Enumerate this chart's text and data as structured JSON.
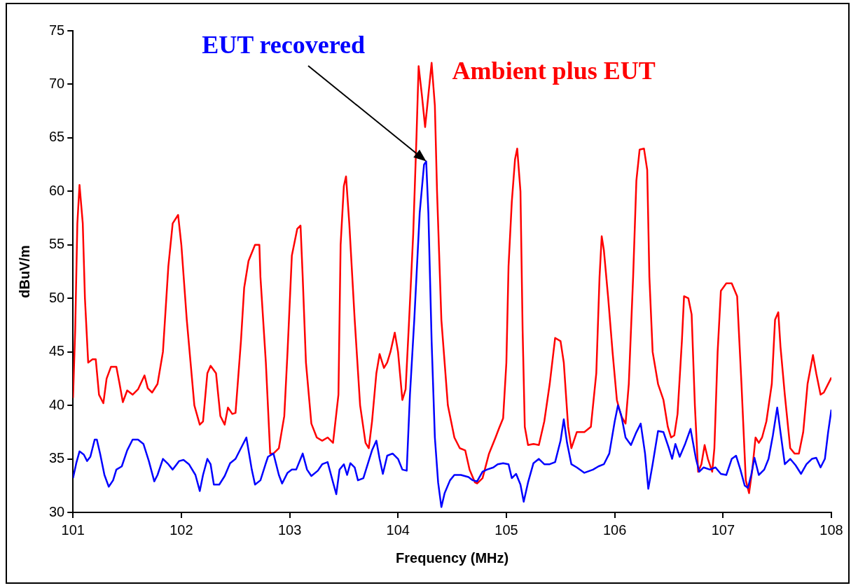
{
  "chart_data": {
    "type": "line",
    "xlabel": "Frequency (MHz)",
    "ylabel": "dBuV/m",
    "xlim": [
      101,
      108
    ],
    "xticks": [
      101,
      102,
      103,
      104,
      105,
      106,
      107,
      108
    ],
    "ylim": [
      30,
      75
    ],
    "yticks": [
      30,
      35,
      40,
      45,
      50,
      55,
      60,
      65,
      70,
      75
    ],
    "grid": false,
    "legend": false,
    "marker": "none",
    "line_style": "solid",
    "series": [
      {
        "name": "Ambient plus EUT",
        "color": "#ff0000",
        "x": [
          101.0,
          101.02,
          101.04,
          101.06,
          101.09,
          101.11,
          101.14,
          101.18,
          101.21,
          101.24,
          101.28,
          101.31,
          101.35,
          101.4,
          101.43,
          101.46,
          101.5,
          101.55,
          101.6,
          101.66,
          101.69,
          101.73,
          101.78,
          101.83,
          101.88,
          101.92,
          101.97,
          102.0,
          102.05,
          102.12,
          102.17,
          102.2,
          102.24,
          102.27,
          102.32,
          102.36,
          102.4,
          102.43,
          102.47,
          102.5,
          102.55,
          102.58,
          102.62,
          102.68,
          102.72,
          102.73,
          102.78,
          102.82,
          102.85,
          102.9,
          102.95,
          102.98,
          103.02,
          103.07,
          103.1,
          103.12,
          103.15,
          103.2,
          103.25,
          103.3,
          103.35,
          103.4,
          103.45,
          103.47,
          103.5,
          103.52,
          103.55,
          103.6,
          103.65,
          103.7,
          103.73,
          103.76,
          103.8,
          103.83,
          103.87,
          103.9,
          103.93,
          103.97,
          104.0,
          104.04,
          104.07,
          104.1,
          104.14,
          104.17,
          104.19,
          104.22,
          104.25,
          104.28,
          104.31,
          104.34,
          104.36,
          104.4,
          104.46,
          104.52,
          104.57,
          104.62,
          104.66,
          104.71,
          104.73,
          104.78,
          104.84,
          104.9,
          104.93,
          104.97,
          105.0,
          105.02,
          105.05,
          105.08,
          105.1,
          105.13,
          105.15,
          105.17,
          105.2,
          105.25,
          105.3,
          105.35,
          105.4,
          105.45,
          105.5,
          105.53,
          105.57,
          105.6,
          105.65,
          105.72,
          105.78,
          105.83,
          105.86,
          105.88,
          105.9,
          105.94,
          105.98,
          106.02,
          106.06,
          106.1,
          106.13,
          106.17,
          106.2,
          106.23,
          106.27,
          106.3,
          106.32,
          106.35,
          106.4,
          106.45,
          106.49,
          106.52,
          106.55,
          106.58,
          106.62,
          106.64,
          106.68,
          106.71,
          106.74,
          106.77,
          106.8,
          106.83,
          106.86,
          106.9,
          106.92,
          106.95,
          106.98,
          107.03,
          107.08,
          107.13,
          107.17,
          107.21,
          107.24,
          107.27,
          107.3,
          107.33,
          107.36,
          107.4,
          107.45,
          107.48,
          107.51,
          107.53,
          107.57,
          107.62,
          107.66,
          107.7,
          107.74,
          107.78,
          107.83,
          107.86,
          107.9,
          107.93,
          107.96,
          108.0
        ],
        "values": [
          40.7,
          47,
          57,
          60.6,
          57,
          50,
          44,
          44.3,
          44.3,
          41,
          40.2,
          42.5,
          43.6,
          43.6,
          42,
          40.3,
          41.4,
          41,
          41.5,
          42.8,
          41.6,
          41.2,
          42,
          45,
          53,
          57,
          57.8,
          55,
          48,
          40,
          38.2,
          38.5,
          43,
          43.7,
          43,
          39,
          38.2,
          39.8,
          39.2,
          39.3,
          46,
          51,
          53.5,
          55,
          55,
          52,
          44,
          35.5,
          35.5,
          36,
          39,
          45,
          54,
          56.5,
          56.8,
          52,
          44,
          38.3,
          37,
          36.7,
          37,
          36.5,
          41,
          55,
          60.5,
          61.4,
          57,
          48,
          40,
          36.5,
          36,
          38.5,
          43,
          44.8,
          43.5,
          44,
          45,
          46.8,
          45,
          40.5,
          41.5,
          47.5,
          56,
          65,
          71.7,
          69,
          66,
          69,
          72,
          68,
          60,
          48,
          40,
          37,
          36,
          35.8,
          34,
          32.8,
          32.7,
          33.2,
          35.5,
          37,
          37.8,
          38.8,
          44,
          53,
          59,
          63,
          64,
          60,
          47,
          38,
          36.3,
          36.4,
          36.3,
          38.5,
          42,
          46.3,
          46,
          44,
          38,
          36,
          37.5,
          37.5,
          38,
          43,
          52,
          55.8,
          54.5,
          50,
          45,
          40.5,
          39,
          38.3,
          42,
          52,
          61,
          63.9,
          64,
          62,
          52,
          45,
          42,
          40.5,
          38,
          37,
          37.2,
          39.2,
          46,
          50.2,
          50,
          48.5,
          40,
          33.8,
          34.5,
          36.3,
          35,
          33.8,
          36,
          45,
          50.7,
          51.4,
          51.4,
          50.2,
          42,
          33,
          31.8,
          34,
          37,
          36.5,
          37,
          38.5,
          42,
          48,
          48.7,
          45.5,
          41,
          36,
          35.5,
          35.5,
          37.5,
          42,
          44.7,
          43,
          41,
          41.2,
          41.8,
          42.6
        ]
      },
      {
        "name": "EUT recovered",
        "color": "#0000ff",
        "x": [
          101.0,
          101.03,
          101.06,
          101.1,
          101.13,
          101.16,
          101.2,
          101.22,
          101.25,
          101.29,
          101.33,
          101.37,
          101.4,
          101.45,
          101.5,
          101.55,
          101.6,
          101.65,
          101.7,
          101.75,
          101.78,
          101.83,
          101.88,
          101.92,
          101.98,
          102.02,
          102.07,
          102.13,
          102.17,
          102.2,
          102.24,
          102.27,
          102.3,
          102.35,
          102.4,
          102.45,
          102.5,
          102.55,
          102.6,
          102.65,
          102.68,
          102.73,
          102.78,
          102.8,
          102.85,
          102.9,
          102.93,
          102.98,
          103.02,
          103.06,
          103.12,
          103.16,
          103.2,
          103.26,
          103.3,
          103.35,
          103.4,
          103.43,
          103.46,
          103.5,
          103.53,
          103.56,
          103.6,
          103.63,
          103.68,
          103.72,
          103.76,
          103.8,
          103.83,
          103.86,
          103.9,
          103.95,
          104.0,
          104.04,
          104.08,
          104.11,
          104.15,
          104.2,
          104.24,
          104.26,
          104.28,
          104.31,
          104.34,
          104.37,
          104.4,
          104.43,
          104.48,
          104.52,
          104.58,
          104.65,
          104.69,
          104.73,
          104.78,
          104.82,
          104.88,
          104.92,
          104.97,
          105.02,
          105.05,
          105.09,
          105.13,
          105.16,
          105.2,
          105.25,
          105.3,
          105.35,
          105.4,
          105.45,
          105.5,
          105.53,
          105.56,
          105.6,
          105.65,
          105.72,
          105.8,
          105.85,
          105.9,
          105.95,
          106.0,
          106.03,
          106.06,
          106.1,
          106.15,
          106.2,
          106.24,
          106.28,
          106.31,
          106.35,
          106.4,
          106.45,
          106.5,
          106.53,
          106.56,
          106.6,
          106.65,
          106.7,
          106.75,
          106.78,
          106.82,
          106.88,
          106.93,
          106.98,
          107.03,
          107.08,
          107.12,
          107.16,
          107.2,
          107.23,
          107.26,
          107.29,
          107.33,
          107.38,
          107.42,
          107.46,
          107.5,
          107.53,
          107.57,
          107.62,
          107.67,
          107.72,
          107.77,
          107.82,
          107.86,
          107.9,
          107.94,
          107.97,
          108.0
        ],
        "values": [
          33.2,
          34.6,
          35.7,
          35.4,
          34.8,
          35.2,
          36.8,
          36.8,
          35.5,
          33.5,
          32.4,
          33,
          34,
          34.3,
          35.8,
          36.8,
          36.8,
          36.4,
          34.8,
          32.9,
          33.5,
          35,
          34.5,
          34,
          34.8,
          34.9,
          34.5,
          33.5,
          32,
          33.5,
          35,
          34.5,
          32.6,
          32.6,
          33.4,
          34.6,
          35,
          36,
          37,
          34,
          32.6,
          33,
          34.6,
          35.2,
          35.5,
          33.5,
          32.7,
          33.7,
          34,
          34,
          35.5,
          34,
          33.4,
          33.9,
          34.5,
          34.7,
          32.8,
          31.7,
          34,
          34.5,
          33.5,
          34.6,
          34.2,
          33,
          33.2,
          34.5,
          35.8,
          36.7,
          35,
          33.6,
          35.3,
          35.5,
          35,
          34,
          33.9,
          41,
          48,
          58,
          62.5,
          62.8,
          58,
          46,
          37,
          32.8,
          30.5,
          31.8,
          33,
          33.5,
          33.5,
          33.3,
          33,
          32.9,
          33.8,
          34,
          34.2,
          34.5,
          34.6,
          34.5,
          33.2,
          33.6,
          32.6,
          31,
          32.8,
          34.6,
          35,
          34.5,
          34.5,
          34.7,
          36.7,
          38.7,
          36.5,
          34.5,
          34.2,
          33.7,
          34,
          34.3,
          34.5,
          35.5,
          38.5,
          40,
          39.1,
          37,
          36.3,
          37.5,
          38.3,
          35.5,
          32.2,
          34.5,
          37.6,
          37.5,
          36,
          35,
          36.4,
          35.2,
          36.4,
          37.8,
          35,
          33.8,
          34.2,
          34,
          34.2,
          33.6,
          33.5,
          35,
          35.3,
          34,
          32.5,
          32.3,
          33.5,
          35.1,
          33.5,
          34,
          35,
          37.2,
          39.8,
          37.5,
          34.5,
          35,
          34.4,
          33.6,
          34.5,
          35,
          35.1,
          34.2,
          35,
          37.5,
          39.6
        ]
      }
    ]
  }
}
